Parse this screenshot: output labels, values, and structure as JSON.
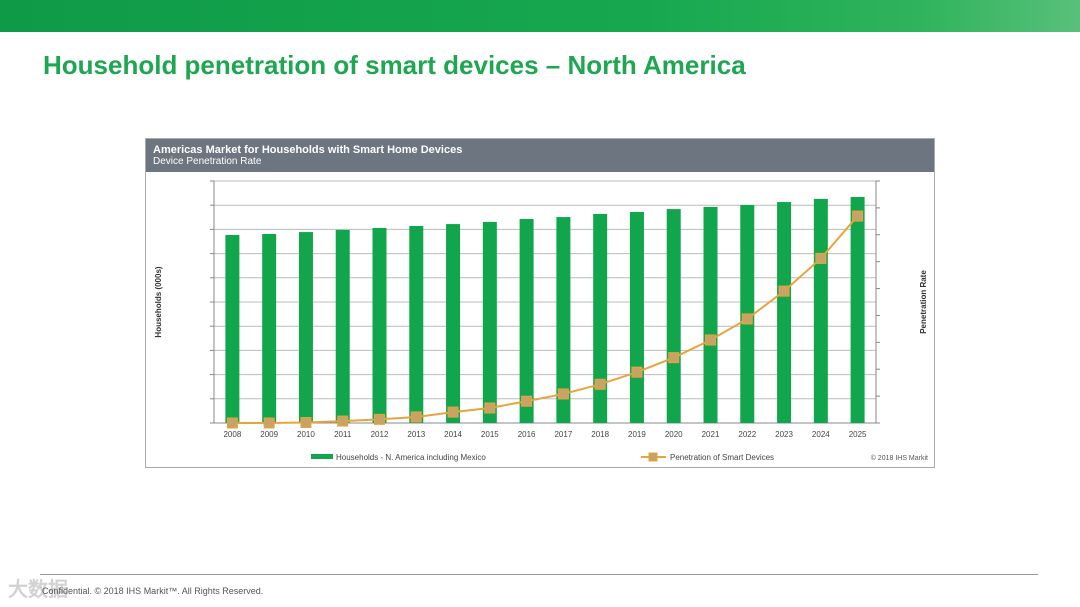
{
  "slide": {
    "title": "Household penetration of smart devices – North America",
    "footer": "Confidential. © 2018 IHS Markit™. All Rights Reserved.",
    "watermark": "大数据"
  },
  "chart_data": {
    "type": "bar+line",
    "title": "Americas Market for Households with Smart Home Devices",
    "subtitle": "Device Penetration Rate",
    "ylabel": "Households (000s)",
    "y2label": "Penetration Rate",
    "categories": [
      "2008",
      "2009",
      "2010",
      "2011",
      "2012",
      "2013",
      "2014",
      "2015",
      "2016",
      "2017",
      "2018",
      "2019",
      "2020",
      "2021",
      "2022",
      "2023",
      "2024",
      "2025"
    ],
    "series": [
      {
        "name": "Households - N. America including Mexico",
        "type": "bar",
        "color": "#12a64c",
        "values": [
          7.77,
          7.81,
          7.89,
          7.98,
          8.06,
          8.14,
          8.22,
          8.31,
          8.43,
          8.51,
          8.64,
          8.72,
          8.84,
          8.93,
          9.01,
          9.13,
          9.26,
          9.34
        ]
      },
      {
        "name": "Penetration of Smart Devices",
        "type": "line",
        "color": "#e8a43c",
        "values": [
          0,
          0,
          0.2,
          0.8,
          1.5,
          2.5,
          4.5,
          6.2,
          9,
          12,
          16,
          21,
          27,
          34.3,
          43,
          54.5,
          68,
          85.5
        ]
      }
    ],
    "ylim": [
      0,
      10
    ],
    "y2lim": [
      0,
      100
    ],
    "grid": true,
    "legend": "bottom",
    "copyright": "© 2018 IHS Markit",
    "note": "Axis tick values not shown; values in relative units"
  }
}
